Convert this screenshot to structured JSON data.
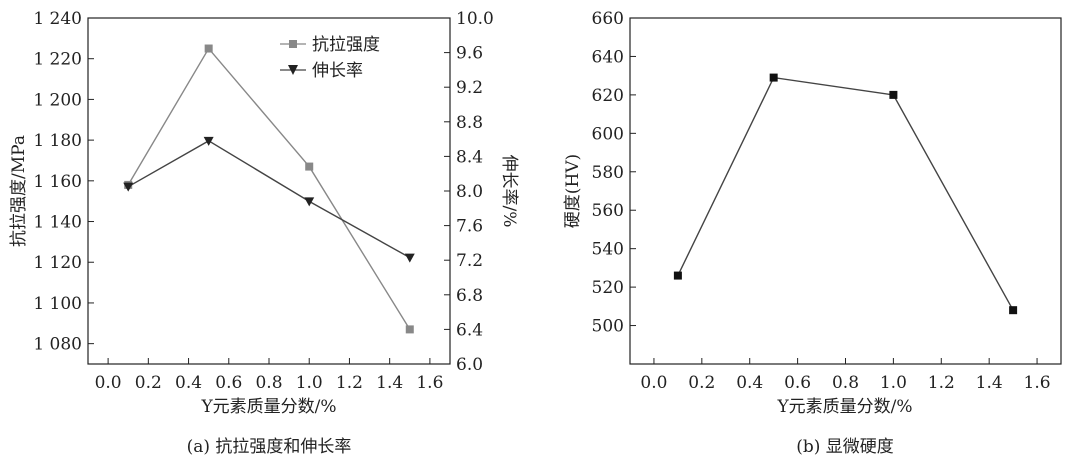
{
  "chart_data": [
    {
      "type": "line",
      "caption": "(a) 抗拉强度和伸长率",
      "xlabel": "Y元素质量分数/%",
      "ylabel": "抗拉强度/MPa",
      "y2label": "伸长率/%",
      "x": [
        0.1,
        0.5,
        1.0,
        1.5
      ],
      "xlim": [
        -0.1,
        1.7
      ],
      "xticks": [
        "0.0",
        "0.2",
        "0.4",
        "0.6",
        "0.8",
        "1.0",
        "1.2",
        "1.4",
        "1.6"
      ],
      "ylim": [
        1070,
        1240
      ],
      "yticks": [
        "1 080",
        "1 100",
        "1 120",
        "1 140",
        "1 160",
        "1 180",
        "1 200",
        "1 220",
        "1 240"
      ],
      "y2lim": [
        6.0,
        10.0
      ],
      "y2ticks": [
        "6.0",
        "6.4",
        "6.8",
        "7.2",
        "7.6",
        "8.0",
        "8.4",
        "8.8",
        "9.2",
        "9.6",
        "10.0"
      ],
      "legend_position": "top-right",
      "series": [
        {
          "name": "抗拉强度",
          "axis": "left",
          "marker": "square",
          "color": "#888888",
          "values": [
            1158,
            1225,
            1167,
            1087
          ]
        },
        {
          "name": "伸长率",
          "axis": "right",
          "marker": "triangle-down",
          "color": "#444444",
          "values": [
            8.05,
            8.58,
            7.88,
            7.23
          ]
        }
      ]
    },
    {
      "type": "line",
      "caption": "(b) 显微硬度",
      "xlabel": "Y元素质量分数/%",
      "ylabel": "硬度(HV)",
      "x": [
        0.1,
        0.5,
        1.0,
        1.5
      ],
      "xlim": [
        -0.1,
        1.7
      ],
      "xticks": [
        "0.0",
        "0.2",
        "0.4",
        "0.6",
        "0.8",
        "1.0",
        "1.2",
        "1.4",
        "1.6"
      ],
      "ylim": [
        480,
        660
      ],
      "yticks": [
        "500",
        "520",
        "540",
        "560",
        "580",
        "600",
        "620",
        "640",
        "660"
      ],
      "series": [
        {
          "marker": "square",
          "color": "#444444",
          "values": [
            526,
            629,
            620,
            508
          ]
        }
      ]
    }
  ]
}
